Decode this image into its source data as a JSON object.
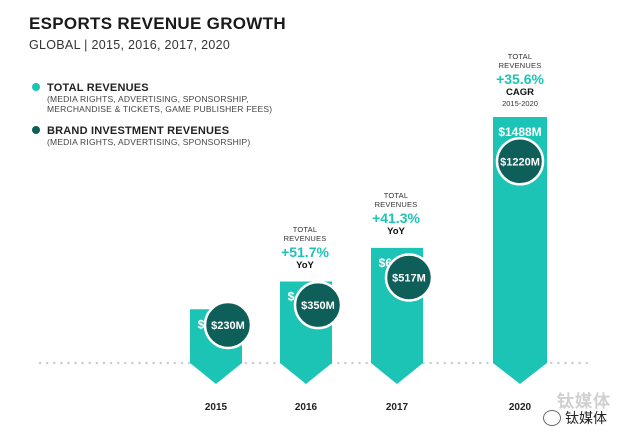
{
  "header": {
    "title": "ESPORTS REVENUE GROWTH",
    "subtitle": "GLOBAL | 2015, 2016, 2017, 2020"
  },
  "legend": {
    "total": {
      "title": "TOTAL REVENUES",
      "desc1": "(MEDIA RIGHTS, ADVERTISING, SPONSORSHIP,",
      "desc2": "MERCHANDISE & TICKETS, GAME PUBLISHER FEES)",
      "color": "#1cc4b5"
    },
    "brand": {
      "title": "BRAND INVESTMENT REVENUES",
      "desc1": "(MEDIA RIGHTS, ADVERTISING, SPONSORSHIP)",
      "color": "#0e5e59"
    }
  },
  "annotations": [
    {
      "line1": "TOTAL",
      "line2": "REVENUES",
      "pct": "+51.7%",
      "tag": "YoY",
      "range": ""
    },
    {
      "line1": "TOTAL",
      "line2": "REVENUES",
      "pct": "+41.3%",
      "tag": "YoY",
      "range": ""
    },
    {
      "line1": "TOTAL",
      "line2": "REVENUES",
      "pct": "+35.6%",
      "tag": "CAGR",
      "range": "2015-2020"
    }
  ],
  "watermark": {
    "text": "钛媒体",
    "wechat_text": "钛媒体"
  },
  "chart_data": {
    "type": "bar",
    "title": "ESPORTS REVENUE GROWTH",
    "subtitle": "GLOBAL | 2015, 2016, 2017, 2020",
    "categories": [
      "2015",
      "2016",
      "2017",
      "2020"
    ],
    "series": [
      {
        "name": "TOTAL REVENUES",
        "values": [
          325,
          493,
          696,
          1488
        ],
        "labels": [
          "$325M",
          "$493M",
          "$696M",
          "$1488M"
        ],
        "color": "#1cc4b5"
      },
      {
        "name": "BRAND INVESTMENT REVENUES",
        "values": [
          230,
          350,
          517,
          1220
        ],
        "labels": [
          "$230M",
          "$350M",
          "$517M",
          "$1220M"
        ],
        "color": "#0e5e59"
      }
    ],
    "legend_position": "top-left",
    "grid": false
  }
}
